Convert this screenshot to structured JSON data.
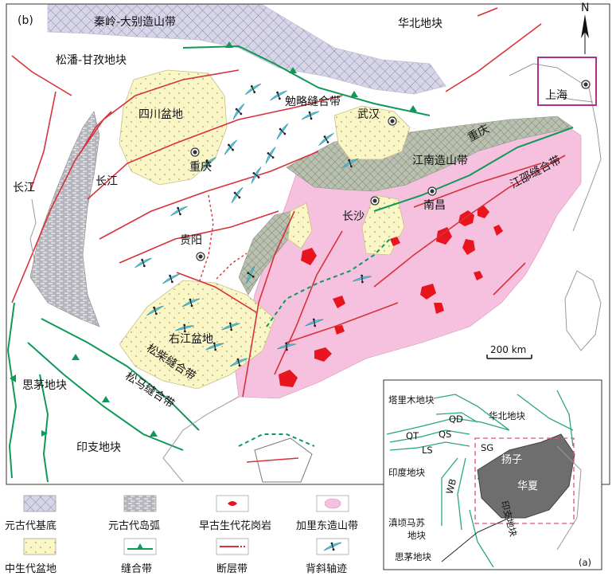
{
  "panel_labels": {
    "main": "(b)",
    "inset": "(a)"
  },
  "north": "N",
  "scale_bar": "200 km",
  "colors": {
    "precambrian_basement": "#c9c7de",
    "precambrian_island_arc": "#a9aab3",
    "granite": "#e8141e",
    "caledonian_orogen": "#f6c1df",
    "mesozoic_basin": "#fbf6c6",
    "suture": "#109858",
    "fault": "#d8313a",
    "anticline": "#58c6d8",
    "inset_block": "#6e6e6e",
    "frame": "#b0308a"
  },
  "main_labels": {
    "qinling_dabie": "秦岭-大别造山带",
    "north_china": "华北地块",
    "songpan_ganzi": "松潘-甘孜地块",
    "sichuan_basin": "四川盆地",
    "mianlue_suture": "勉略缝合带",
    "shanghai": "上海",
    "wuhan": "武汉",
    "chongqing": "重庆",
    "chongqing_east": "重庆",
    "jiangnan_orogen": "江南造山带",
    "jiangshao_suture": "江邵缝合带",
    "yangtze_west": "长江",
    "yangtze_mid": "长江",
    "changsha": "长沙",
    "nanchang": "南昌",
    "guiyang": "贵阳",
    "youjiang_basin": "右江盆地",
    "songchai_suture": "松柴缝合带",
    "simao": "思茅地块",
    "songma_suture": "松马缝合带",
    "indochina": "印支地块"
  },
  "inset_labels": {
    "tarim": "塔里木地块",
    "qd": "QD",
    "north_china": "华北地块",
    "qt": "QT",
    "qs": "QS",
    "sg": "SG",
    "ls": "LS",
    "yangtze": "扬子",
    "india": "印度地块",
    "wb": "WB",
    "south_china": "华夏",
    "indochina": "印支地块",
    "sibumasu_1": "滇顷马苏",
    "sibumasu_2": "地块",
    "simao": "思茅地块"
  },
  "legend": [
    {
      "label": "元古代基底",
      "icon": "crosshatch-swatch"
    },
    {
      "label": "元古代岛弧",
      "icon": "hatched-gray-swatch"
    },
    {
      "label": "早古生代花岗岩",
      "icon": "red-blob-swatch"
    },
    {
      "label": "加里东造山带",
      "icon": "pink-blob-swatch"
    },
    {
      "label": "中生代盆地",
      "icon": "dotted-yellow-swatch"
    },
    {
      "label": "缝合带",
      "icon": "suture-line"
    },
    {
      "label": "断层带",
      "icon": "fault-line"
    },
    {
      "label": "背斜轴迹",
      "icon": "anticline-symbol"
    }
  ]
}
